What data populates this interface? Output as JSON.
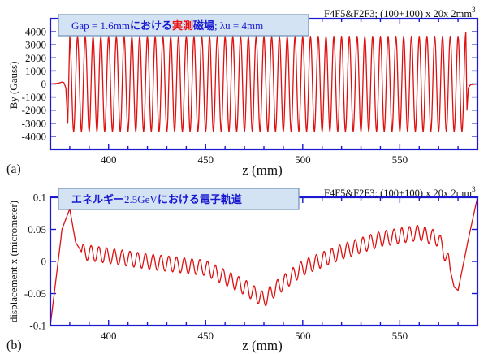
{
  "colors": {
    "frame": "#1a1ad0",
    "series": "#dd1111",
    "title_box_fill": "#d3e3f4",
    "title_text": "#1a1ad0",
    "title_highlight": "#ee1111"
  },
  "chart_data": [
    {
      "panel": "(a)",
      "type": "line",
      "title_parts": [
        "Gap = 1.6mm",
        "における",
        "実測",
        "磁場",
        "; λu = 4mm"
      ],
      "corner_note": "F4F5&F2F3; (100+100) x 20x 2mm",
      "corner_note_sup": "3",
      "xlabel": "z (mm)",
      "ylabel": "By (Gauss)",
      "xlim": [
        370,
        590
      ],
      "ylim": [
        -5000,
        5000
      ],
      "xticks": [
        400,
        450,
        500,
        550
      ],
      "yticks": [
        4000,
        3000,
        2000,
        1000,
        0,
        -1000,
        -2000,
        -3000,
        -4000
      ],
      "ytick_labels": [
        "4000",
        "3000",
        "2000",
        "1000",
        "0",
        "-1000",
        "-2000",
        "-3000",
        "-4000"
      ],
      "grid": false,
      "series": [
        {
          "period_mm": 4,
          "periodic_start_mm": 380,
          "periodic_end_mm": 584,
          "amplitude": 3650,
          "end_peak": 3950,
          "points": [
            [
              370,
              0
            ],
            [
              374,
              50
            ],
            [
              376,
              150
            ],
            [
              377,
              100
            ],
            [
              378,
              -300
            ],
            [
              379,
              -3000
            ]
          ]
        }
      ]
    },
    {
      "panel": "(b)",
      "type": "line",
      "title_parts": [
        "エネルギー",
        "2.5GeV",
        "における電子軌道"
      ],
      "corner_note": "F4F5&F2F3; (100+100) x 20x 2mm",
      "corner_note_sup": "3",
      "xlabel": "z (mm)",
      "ylabel": "displacement x (micrometer)",
      "xlim": [
        370,
        590
      ],
      "ylim": [
        -0.1,
        0.1
      ],
      "xticks": [
        400,
        450,
        500,
        550
      ],
      "yticks": [
        0.1,
        0.05,
        0,
        -0.05,
        -0.1
      ],
      "ytick_labels": [
        "0.1",
        "0.05",
        "0",
        "-0.05",
        "-0.1"
      ],
      "grid": false,
      "series": [
        {
          "oscillation_amplitude": 0.012,
          "period_mm": 4,
          "points": [
            [
              370,
              -0.1
            ],
            [
              376,
              0.05
            ],
            [
              380,
              0.082
            ],
            [
              383,
              0.03
            ],
            [
              386,
              0.015
            ],
            [
              420,
              0.0
            ],
            [
              450,
              -0.01
            ],
            [
              470,
              -0.04
            ],
            [
              480,
              -0.06
            ],
            [
              485,
              -0.045
            ],
            [
              500,
              -0.01
            ],
            [
              520,
              0.015
            ],
            [
              540,
              0.035
            ],
            [
              560,
              0.045
            ],
            [
              570,
              0.035
            ],
            [
              575,
              0.0
            ],
            [
              578,
              -0.04
            ],
            [
              580,
              -0.045
            ],
            [
              585,
              0.03
            ],
            [
              590,
              0.1
            ]
          ]
        }
      ]
    }
  ]
}
